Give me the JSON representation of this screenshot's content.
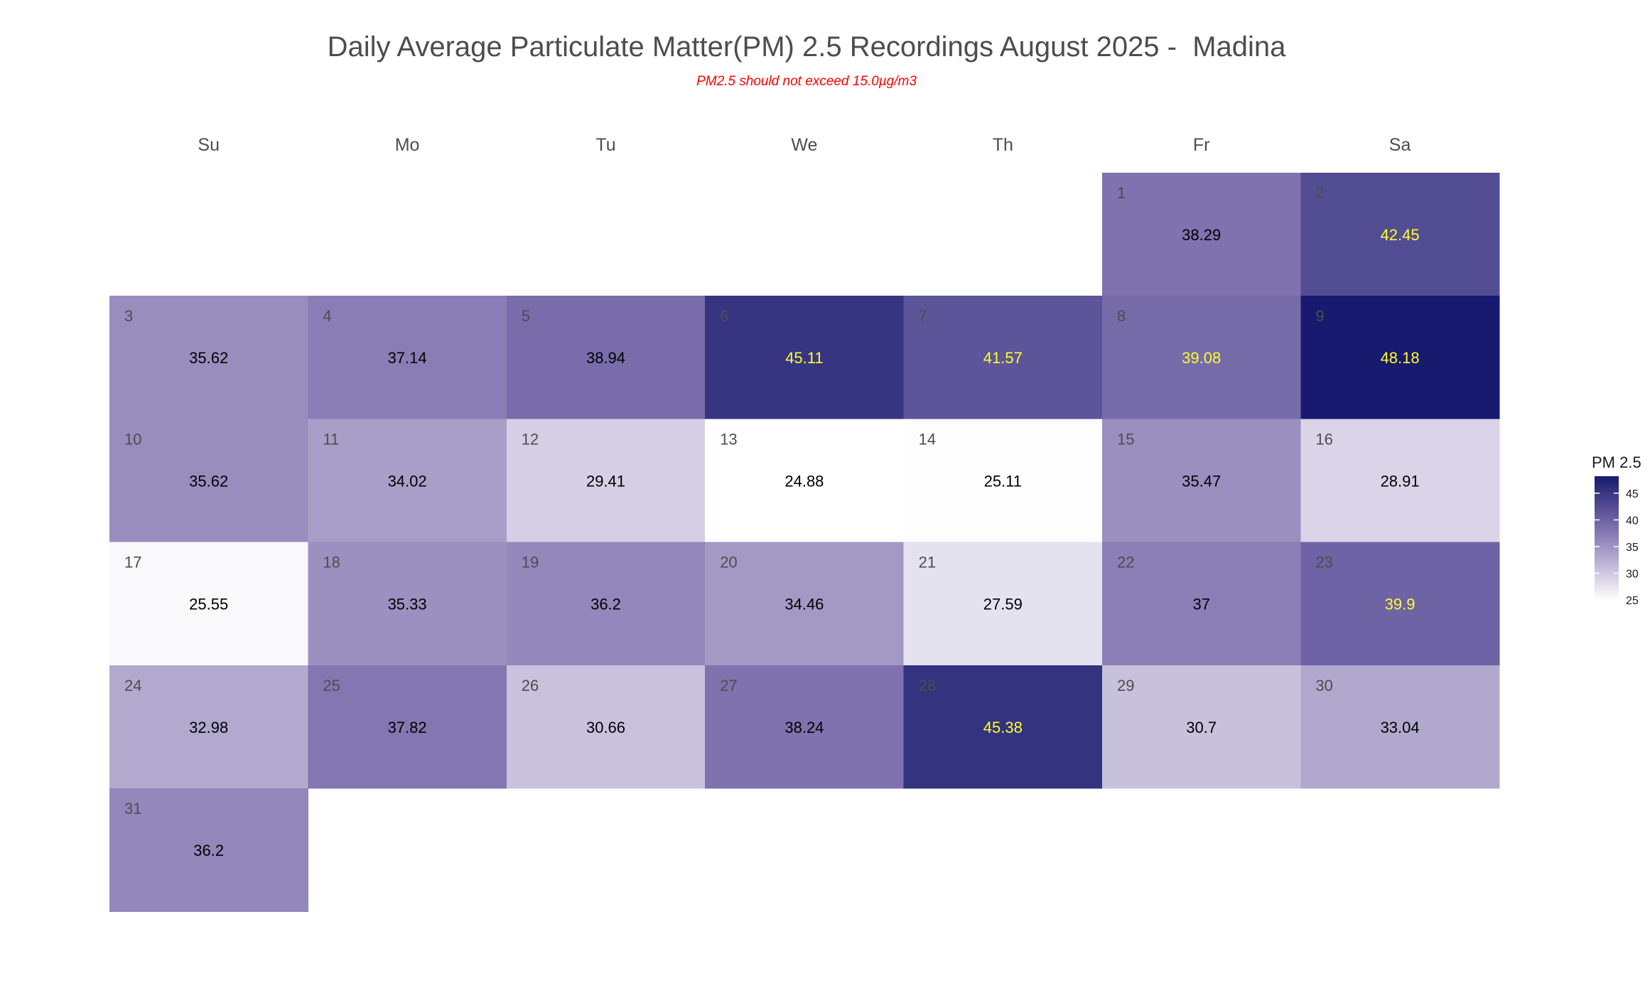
{
  "chart_data": {
    "type": "heatmap",
    "title": "Daily Average Particulate Matter(PM) 2.5 Recordings August 2025 -  Madina",
    "subtitle": "PM2.5 should not exceed 15.0µg/m3",
    "weekdays": [
      "Su",
      "Mo",
      "Tu",
      "We",
      "Th",
      "Fr",
      "Sa"
    ],
    "first_weekday_index": 5,
    "days": [
      1,
      2,
      3,
      4,
      5,
      6,
      7,
      8,
      9,
      10,
      11,
      12,
      13,
      14,
      15,
      16,
      17,
      18,
      19,
      20,
      21,
      22,
      23,
      24,
      25,
      26,
      27,
      28,
      29,
      30,
      31
    ],
    "values": [
      38.29,
      42.45,
      35.62,
      37.14,
      38.94,
      45.11,
      41.57,
      39.08,
      48.18,
      35.62,
      34.02,
      29.41,
      24.88,
      25.11,
      35.47,
      28.91,
      25.55,
      35.33,
      36.2,
      34.46,
      27.59,
      37,
      39.9,
      32.98,
      37.82,
      30.66,
      38.24,
      45.38,
      30.7,
      33.04,
      36.2
    ],
    "value_labels": [
      "38.29",
      "42.45",
      "35.62",
      "37.14",
      "38.94",
      "45.11",
      "41.57",
      "39.08",
      "48.18",
      "35.62",
      "34.02",
      "29.41",
      "24.88",
      "25.11",
      "35.47",
      "28.91",
      "25.55",
      "35.33",
      "36.2",
      "34.46",
      "27.59",
      "37",
      "39.9",
      "32.98",
      "37.82",
      "30.66",
      "38.24",
      "45.38",
      "30.7",
      "33.04",
      "36.2"
    ],
    "highlight_threshold": 39,
    "legend": {
      "title": "PM 2.5",
      "ticks": [
        25,
        30,
        35,
        40,
        45
      ],
      "range": [
        24.88,
        48.18
      ]
    },
    "colors": {
      "low": "#ffffff",
      "mid": "#8577b2",
      "high": "#171a6e",
      "label_normal": "#000000",
      "label_high": "#ffff2e",
      "day_number": "#4d4d4d",
      "subtitle": "#ff0000"
    }
  }
}
